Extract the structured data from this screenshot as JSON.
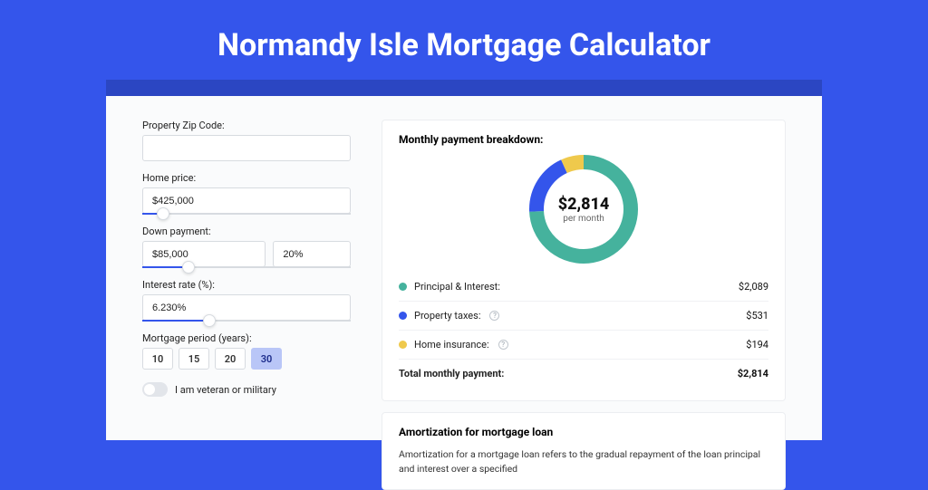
{
  "page": {
    "title": "Normandy Isle Mortgage Calculator",
    "background_color": "#3455eb",
    "shadow_color": "#2b46c2",
    "card_background": "#fafbfc"
  },
  "form": {
    "zip": {
      "label": "Property Zip Code:",
      "value": ""
    },
    "home_price": {
      "label": "Home price:",
      "value": "$425,000",
      "slider_pct": 10
    },
    "down_payment": {
      "label": "Down payment:",
      "amount": "$85,000",
      "percent": "20%",
      "slider_pct": 22
    },
    "interest_rate": {
      "label": "Interest rate (%):",
      "value": "6.230%",
      "slider_pct": 32
    },
    "period": {
      "label": "Mortgage period (years):",
      "options": [
        "10",
        "15",
        "20",
        "30"
      ],
      "selected": "30"
    },
    "veteran": {
      "label": "I am veteran or military",
      "checked": false
    }
  },
  "breakdown": {
    "title": "Monthly payment breakdown:",
    "total_amount": "$2,814",
    "total_sub": "per month",
    "chart": {
      "type": "donut",
      "circumference": 326.7,
      "slices": [
        {
          "name": "Principal & Interest",
          "color": "#45b29d",
          "portion": 0.742
        },
        {
          "name": "Property taxes",
          "color": "#3455eb",
          "portion": 0.189
        },
        {
          "name": "Home insurance",
          "color": "#efc94c",
          "portion": 0.069
        }
      ]
    },
    "legend": [
      {
        "dot": "#45b29d",
        "label": "Principal & Interest:",
        "help": false,
        "value": "$2,089"
      },
      {
        "dot": "#3455eb",
        "label": "Property taxes:",
        "help": true,
        "value": "$531"
      },
      {
        "dot": "#efc94c",
        "label": "Home insurance:",
        "help": true,
        "value": "$194"
      }
    ],
    "total_row": {
      "label": "Total monthly payment:",
      "value": "$2,814"
    }
  },
  "amortization": {
    "title": "Amortization for mortgage loan",
    "text": "Amortization for a mortgage loan refers to the gradual repayment of the loan principal and interest over a specified"
  }
}
